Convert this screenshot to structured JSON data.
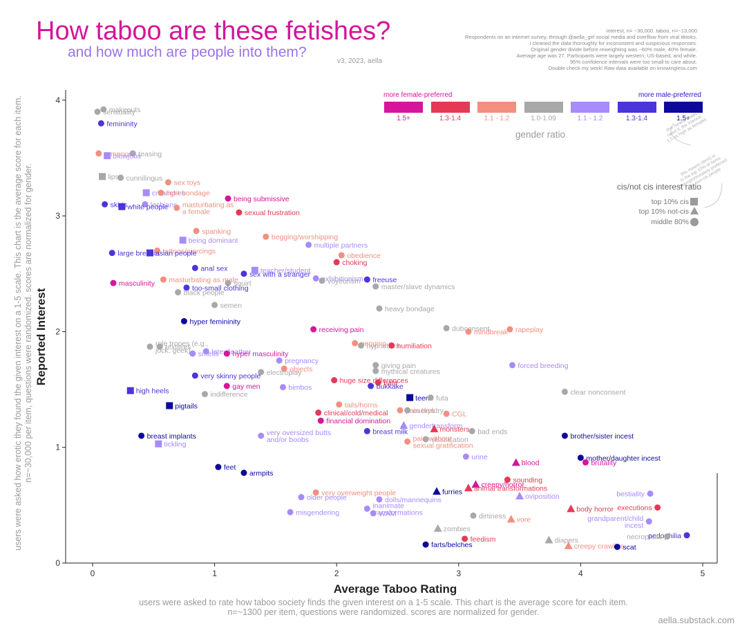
{
  "header": {
    "title": "How taboo are these fetishes?",
    "subtitle": "and how much are people into them?",
    "version": "v3, 2023, aella",
    "notes": [
      "interest, n= ~30,000. taboo, n=~13,000",
      "Respondents on an internet survey, through @aella_girl social media and overflow from viral tiktoks.",
      "I cleaned the data thoroughly for inconsistent and suspicious responses.",
      "Original gender divide before reweighting was ~60% male, 40% female.",
      "Average age was 27. Participants were largely western, US-based, and white.",
      "95% confidence intervals were too small to care about.",
      "Double check my work! Raw data available on knowingless.com"
    ]
  },
  "side_note": [
    "users were asked how erotic they found the given interest on a 1-5 scale. This chart is the average score for each item.",
    "n=~30,000 per item, questions were randomized. scores are normalized for gender."
  ],
  "bottom_note": [
    "users were asked to rate how taboo society finds the given interest on a 1-5 scale. This chart is the average score for each item.",
    "n=~1300 per item, questions were randomized. scores are normalized for gender."
  ],
  "footer": "aella.substack.com",
  "legend": {
    "female_label": "more female-preferred",
    "male_label": "more male-preferred",
    "title": "gender ratio",
    "bins": [
      {
        "label": "1.5+",
        "color": "#d4169a"
      },
      {
        "label": "1.3-1.4",
        "color": "#e43a55"
      },
      {
        "label": "1.1 - 1.2",
        "color": "#f28f80"
      },
      {
        "label": "1.0-1.09",
        "color": "#a8a8a8"
      },
      {
        "label": "1.1 - 1.2",
        "color": "#a78bfa"
      },
      {
        "label": "1.3-1.4",
        "color": "#4a35d8"
      },
      {
        "label": "1.5+",
        "color": "#0d0a9a"
      }
    ],
    "cis_title": "cis/not cis interest ratio",
    "cis_items": [
      {
        "label": "top 10% cis",
        "shape": "square"
      },
      {
        "label": "top 10% not-cis",
        "shape": "triangle"
      },
      {
        "label": "middle 80%",
        "shape": "circle"
      }
    ],
    "note_female": [
      "this means males",
      "rated it, the interest",
      "1.5 as high as females"
    ],
    "note_cis": [
      "this means (item) is",
      "in the top 10% of items",
      "disproportionately preferred",
      "by non-cis people"
    ]
  },
  "chart_data": {
    "type": "scatter",
    "xlabel": "Average Taboo Rating",
    "ylabel": "Reported Interest",
    "xlim": [
      -0.2,
      5.1
    ],
    "ylim": [
      0,
      4.1
    ],
    "xticks": [
      0,
      1,
      2,
      3,
      4,
      5
    ],
    "yticks": [
      0,
      1,
      2,
      3,
      4
    ],
    "grid": false,
    "colors": {
      "f3": "#d4169a",
      "f2": "#e43a55",
      "f1": "#f28f80",
      "n": "#a8a8a8",
      "m1": "#a78bfa",
      "m2": "#4a35d8",
      "m3": "#0d0a9a"
    },
    "points": [
      {
        "label": "sensuality",
        "x": 0.04,
        "y": 3.9,
        "g": "n",
        "s": "c"
      },
      {
        "label": "makeouts",
        "x": 0.09,
        "y": 3.92,
        "g": "n",
        "s": "c"
      },
      {
        "label": "femininity",
        "x": 0.07,
        "y": 3.8,
        "g": "m2",
        "s": "c"
      },
      {
        "label": "romance",
        "x": 0.05,
        "y": 3.54,
        "g": "f1",
        "s": "c"
      },
      {
        "label": "teasing",
        "x": 0.33,
        "y": 3.54,
        "g": "n",
        "s": "c"
      },
      {
        "label": "blowjobs",
        "x": 0.12,
        "y": 3.52,
        "g": "m1",
        "s": "s"
      },
      {
        "label": "lips",
        "x": 0.08,
        "y": 3.34,
        "g": "n",
        "s": "s"
      },
      {
        "label": "cunnilingus",
        "x": 0.23,
        "y": 3.33,
        "g": "n",
        "s": "c"
      },
      {
        "label": "sex toys",
        "x": 0.62,
        "y": 3.29,
        "g": "f1",
        "s": "c"
      },
      {
        "label": "creampies",
        "x": 0.44,
        "y": 3.2,
        "g": "m1",
        "s": "s"
      },
      {
        "label": "light bondage",
        "x": 0.56,
        "y": 3.2,
        "g": "f1",
        "s": "c"
      },
      {
        "label": "being submissive",
        "x": 1.11,
        "y": 3.15,
        "g": "f3",
        "s": "c"
      },
      {
        "label": "skirts",
        "x": 0.1,
        "y": 3.1,
        "g": "m2",
        "s": "c"
      },
      {
        "label": "lesbians",
        "x": 0.43,
        "y": 3.1,
        "g": "m1",
        "s": "c"
      },
      {
        "label": "white people",
        "x": 0.24,
        "y": 3.08,
        "g": "m2",
        "s": "s"
      },
      {
        "label": "masturbating as a female",
        "x": 0.69,
        "y": 3.07,
        "g": "f1",
        "s": "c"
      },
      {
        "label": "sexual frustration",
        "x": 1.2,
        "y": 3.03,
        "g": "f2",
        "s": "c"
      },
      {
        "label": "spanking",
        "x": 0.85,
        "y": 2.87,
        "g": "f1",
        "s": "c"
      },
      {
        "label": "being dominant",
        "x": 0.74,
        "y": 2.79,
        "g": "m1",
        "s": "s"
      },
      {
        "label": "begging/worshipping",
        "x": 1.42,
        "y": 2.82,
        "g": "f1",
        "s": "c"
      },
      {
        "label": "multiple partners",
        "x": 1.77,
        "y": 2.75,
        "g": "m1",
        "s": "c"
      },
      {
        "label": "large breasts",
        "x": 0.16,
        "y": 2.68,
        "g": "m2",
        "s": "c"
      },
      {
        "label": "tattoos/piercings",
        "x": 0.53,
        "y": 2.7,
        "g": "f1",
        "s": "c"
      },
      {
        "label": "asian people",
        "x": 0.47,
        "y": 2.68,
        "g": "m2",
        "s": "s"
      },
      {
        "label": "obedience",
        "x": 2.04,
        "y": 2.66,
        "g": "f1",
        "s": "c"
      },
      {
        "label": "choking",
        "x": 2.0,
        "y": 2.6,
        "g": "f2",
        "s": "c"
      },
      {
        "label": "anal sex",
        "x": 0.84,
        "y": 2.55,
        "g": "m2",
        "s": "c"
      },
      {
        "label": "sex with a stranger",
        "x": 1.24,
        "y": 2.5,
        "g": "m2",
        "s": "c"
      },
      {
        "label": "teacher/student",
        "x": 1.33,
        "y": 2.53,
        "g": "m1",
        "s": "s"
      },
      {
        "label": "exhibitionism",
        "x": 1.83,
        "y": 2.46,
        "g": "m1",
        "s": "c"
      },
      {
        "label": "voyeurism",
        "x": 1.88,
        "y": 2.44,
        "g": "n",
        "s": "c"
      },
      {
        "label": "freeuse",
        "x": 2.25,
        "y": 2.45,
        "g": "m2",
        "s": "c"
      },
      {
        "label": "master/slave dynamics",
        "x": 2.32,
        "y": 2.39,
        "g": "n",
        "s": "c"
      },
      {
        "label": "masturbating as male",
        "x": 0.58,
        "y": 2.45,
        "g": "f1",
        "s": "c"
      },
      {
        "label": "squirt",
        "x": 1.11,
        "y": 2.42,
        "g": "n",
        "s": "c"
      },
      {
        "label": "masculinity",
        "x": 0.17,
        "y": 2.42,
        "g": "f3",
        "s": "c"
      },
      {
        "label": "too-small clothing",
        "x": 0.77,
        "y": 2.38,
        "g": "m2",
        "s": "c"
      },
      {
        "label": "black people",
        "x": 0.7,
        "y": 2.34,
        "g": "n",
        "s": "c"
      },
      {
        "label": "semen",
        "x": 1.0,
        "y": 2.23,
        "g": "n",
        "s": "c"
      },
      {
        "label": "heavy bondage",
        "x": 2.35,
        "y": 2.2,
        "g": "n",
        "s": "c"
      },
      {
        "label": "hyper femininity",
        "x": 0.75,
        "y": 2.09,
        "g": "m3",
        "s": "c"
      },
      {
        "label": "receiving pain",
        "x": 1.81,
        "y": 2.02,
        "g": "f3",
        "s": "c"
      },
      {
        "label": "dubconsent",
        "x": 2.9,
        "y": 2.03,
        "g": "n",
        "s": "c"
      },
      {
        "label": "rapeplay",
        "x": 3.42,
        "y": 2.02,
        "g": "f1",
        "s": "c"
      },
      {
        "label": "mindbreak",
        "x": 3.08,
        "y": 2.0,
        "g": "f1",
        "s": "c"
      },
      {
        "label": "textures",
        "x": 0.55,
        "y": 1.87,
        "g": "n",
        "s": "c"
      },
      {
        "label": "role tropes (e.g., jock, geek)",
        "x": 0.47,
        "y": 1.87,
        "g": "n",
        "s": "c"
      },
      {
        "label": "latex/leather",
        "x": 0.93,
        "y": 1.83,
        "g": "m1",
        "s": "c"
      },
      {
        "label": "pegging",
        "x": 2.15,
        "y": 1.9,
        "g": "f1",
        "s": "c"
      },
      {
        "label": "hypnotism",
        "x": 2.2,
        "y": 1.88,
        "g": "n",
        "s": "c"
      },
      {
        "label": "humiliation",
        "x": 2.45,
        "y": 1.88,
        "g": "f2",
        "s": "c"
      },
      {
        "label": "hyper masculinity",
        "x": 1.1,
        "y": 1.81,
        "g": "f3",
        "s": "c"
      },
      {
        "label": "smells",
        "x": 0.82,
        "y": 1.81,
        "g": "m1",
        "s": "c"
      },
      {
        "label": "pregnancy",
        "x": 1.53,
        "y": 1.75,
        "g": "m1",
        "s": "c"
      },
      {
        "label": "giving pain",
        "x": 2.32,
        "y": 1.71,
        "g": "n",
        "s": "c"
      },
      {
        "label": "forced breeding",
        "x": 3.44,
        "y": 1.71,
        "g": "m1",
        "s": "c"
      },
      {
        "label": "electroplay",
        "x": 1.38,
        "y": 1.65,
        "g": "n",
        "s": "c"
      },
      {
        "label": "objects",
        "x": 1.57,
        "y": 1.68,
        "g": "f1",
        "s": "c"
      },
      {
        "label": "mythical creatures",
        "x": 2.32,
        "y": 1.66,
        "g": "n",
        "s": "c"
      },
      {
        "label": "very skinny people",
        "x": 0.84,
        "y": 1.62,
        "g": "m2",
        "s": "c"
      },
      {
        "label": "gay men",
        "x": 1.1,
        "y": 1.53,
        "g": "f3",
        "s": "c"
      },
      {
        "label": "hate",
        "x": 2.34,
        "y": 1.56,
        "g": "f2",
        "s": "c"
      },
      {
        "label": "huge size differences",
        "x": 1.98,
        "y": 1.58,
        "g": "f2",
        "s": "c"
      },
      {
        "label": "high heels",
        "x": 0.31,
        "y": 1.49,
        "g": "m2",
        "s": "s"
      },
      {
        "label": "bimbos",
        "x": 1.56,
        "y": 1.52,
        "g": "m1",
        "s": "c"
      },
      {
        "label": "bukkake",
        "x": 2.28,
        "y": 1.53,
        "g": "m2",
        "s": "c"
      },
      {
        "label": "teens",
        "x": 2.6,
        "y": 1.43,
        "g": "m3",
        "s": "s"
      },
      {
        "label": "futa",
        "x": 2.77,
        "y": 1.43,
        "g": "n",
        "s": "c"
      },
      {
        "label": "clear nonconsent",
        "x": 3.87,
        "y": 1.48,
        "g": "n",
        "s": "c"
      },
      {
        "label": "indifference",
        "x": 0.92,
        "y": 1.46,
        "g": "n",
        "s": "c"
      },
      {
        "label": "pigtails",
        "x": 0.63,
        "y": 1.36,
        "g": "m3",
        "s": "s"
      },
      {
        "label": "tails/horns",
        "x": 2.02,
        "y": 1.37,
        "g": "f1",
        "s": "c"
      },
      {
        "label": "clinical/cold/medical",
        "x": 1.85,
        "y": 1.3,
        "g": "f2",
        "s": "c"
      },
      {
        "label": "pain toys",
        "x": 2.52,
        "y": 1.32,
        "g": "f1",
        "s": "c"
      },
      {
        "label": "cuckoldry",
        "x": 2.58,
        "y": 1.32,
        "g": "n",
        "s": "c"
      },
      {
        "label": "CGL",
        "x": 2.9,
        "y": 1.29,
        "g": "f1",
        "s": "c"
      },
      {
        "label": "financial domination",
        "x": 1.87,
        "y": 1.23,
        "g": "f3",
        "s": "c"
      },
      {
        "label": "gendertransform",
        "x": 2.55,
        "y": 1.19,
        "g": "m1",
        "s": "t"
      },
      {
        "label": "monsters",
        "x": 2.8,
        "y": 1.16,
        "g": "f2",
        "s": "t"
      },
      {
        "label": "bad ends",
        "x": 3.11,
        "y": 1.14,
        "g": "n",
        "s": "c"
      },
      {
        "label": "breast implants",
        "x": 0.4,
        "y": 1.1,
        "g": "m3",
        "s": "c"
      },
      {
        "label": "brother/sister incest",
        "x": 3.87,
        "y": 1.1,
        "g": "m3",
        "s": "c"
      },
      {
        "label": "breast milk",
        "x": 2.25,
        "y": 1.14,
        "g": "m2",
        "s": "c"
      },
      {
        "label": "very oversized butts and/or boobs",
        "x": 1.38,
        "y": 1.1,
        "g": "m1",
        "s": "c"
      },
      {
        "label": "sissification",
        "x": 2.73,
        "y": 1.07,
        "g": "n",
        "s": "c"
      },
      {
        "label": "tickling",
        "x": 0.54,
        "y": 1.03,
        "g": "m1",
        "s": "s"
      },
      {
        "label": "pain without sexual gratification",
        "x": 2.58,
        "y": 1.05,
        "g": "f1",
        "s": "c"
      },
      {
        "label": "mother/daughter incest",
        "x": 4.0,
        "y": 0.91,
        "g": "m3",
        "s": "c"
      },
      {
        "label": "urine",
        "x": 3.06,
        "y": 0.92,
        "g": "m1",
        "s": "c"
      },
      {
        "label": "blood",
        "x": 3.47,
        "y": 0.87,
        "g": "f3",
        "s": "t"
      },
      {
        "label": "brutality",
        "x": 4.04,
        "y": 0.87,
        "g": "f3",
        "s": "c"
      },
      {
        "label": "feet",
        "x": 1.03,
        "y": 0.83,
        "g": "m3",
        "s": "c"
      },
      {
        "label": "armpits",
        "x": 1.24,
        "y": 0.78,
        "g": "m3",
        "s": "c"
      },
      {
        "label": "sounding",
        "x": 3.4,
        "y": 0.72,
        "g": "f2",
        "s": "c"
      },
      {
        "label": "creepy/horror",
        "x": 3.14,
        "y": 0.68,
        "g": "f3",
        "s": "t"
      },
      {
        "label": "animal transformations",
        "x": 3.08,
        "y": 0.65,
        "g": "f2",
        "s": "t"
      },
      {
        "label": "very overweight people",
        "x": 1.83,
        "y": 0.61,
        "g": "f1",
        "s": "c"
      },
      {
        "label": "furries",
        "x": 2.82,
        "y": 0.62,
        "g": "m3",
        "s": "t"
      },
      {
        "label": "bestiality",
        "x": 4.57,
        "y": 0.6,
        "g": "m1",
        "s": "c"
      },
      {
        "label": "oviposition",
        "x": 3.5,
        "y": 0.58,
        "g": "m1",
        "s": "t"
      },
      {
        "label": "older people",
        "x": 1.71,
        "y": 0.57,
        "g": "m1",
        "s": "c"
      },
      {
        "label": "dolls/mannequins",
        "x": 2.35,
        "y": 0.55,
        "g": "m1",
        "s": "c"
      },
      {
        "label": "executions",
        "x": 4.63,
        "y": 0.48,
        "g": "f2",
        "s": "c"
      },
      {
        "label": "body horror",
        "x": 3.92,
        "y": 0.47,
        "g": "f2",
        "s": "t"
      },
      {
        "label": "inanimate transformations",
        "x": 2.25,
        "y": 0.47,
        "g": "m1",
        "s": "c"
      },
      {
        "label": "WAM",
        "x": 2.3,
        "y": 0.43,
        "g": "m1",
        "s": "c"
      },
      {
        "label": "misgendering",
        "x": 1.62,
        "y": 0.44,
        "g": "m1",
        "s": "c"
      },
      {
        "label": "dirtiness",
        "x": 3.12,
        "y": 0.41,
        "g": "n",
        "s": "c"
      },
      {
        "label": "vore",
        "x": 3.43,
        "y": 0.38,
        "g": "f1",
        "s": "t"
      },
      {
        "label": "grandparent/child incest",
        "x": 4.56,
        "y": 0.36,
        "g": "m1",
        "s": "c"
      },
      {
        "label": "zombies",
        "x": 2.83,
        "y": 0.3,
        "g": "n",
        "s": "t"
      },
      {
        "label": "pedophilia",
        "x": 4.87,
        "y": 0.24,
        "g": "m2",
        "s": "c"
      },
      {
        "label": "feedism",
        "x": 3.05,
        "y": 0.21,
        "g": "f2",
        "s": "c"
      },
      {
        "label": "diapers",
        "x": 3.74,
        "y": 0.2,
        "g": "n",
        "s": "t"
      },
      {
        "label": "necrophilia",
        "x": 4.71,
        "y": 0.23,
        "g": "n",
        "s": "c"
      },
      {
        "label": "farts/belches",
        "x": 2.73,
        "y": 0.16,
        "g": "m3",
        "s": "c"
      },
      {
        "label": "creepy crawlies",
        "x": 3.9,
        "y": 0.15,
        "g": "f1",
        "s": "t"
      },
      {
        "label": "scat",
        "x": 4.3,
        "y": 0.14,
        "g": "m3",
        "s": "c"
      }
    ]
  }
}
